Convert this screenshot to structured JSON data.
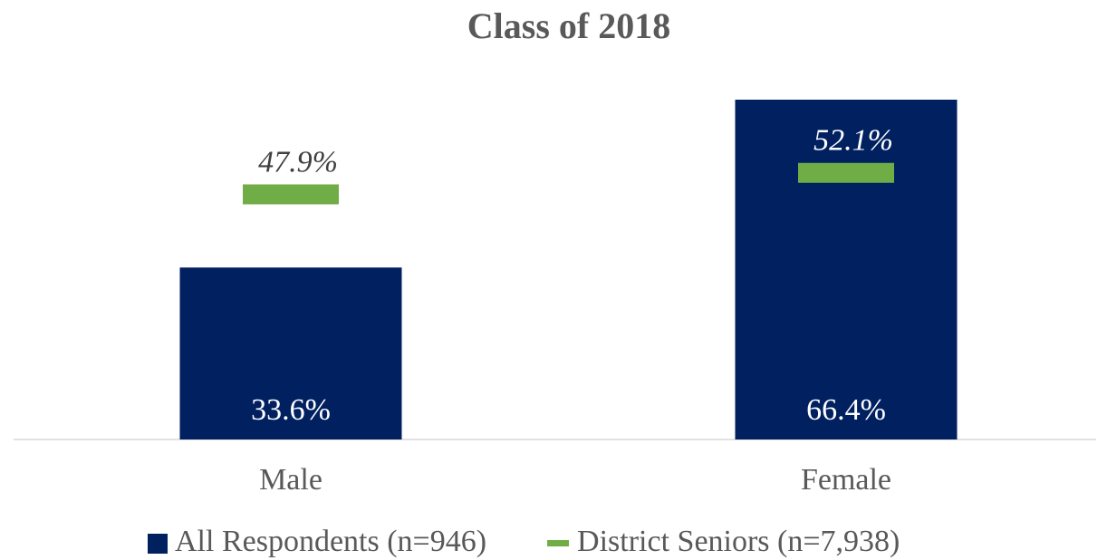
{
  "chart_data": {
    "type": "bar",
    "title": "Class of 2018",
    "categories": [
      "Male",
      "Female"
    ],
    "series": [
      {
        "name": "All Respondents (n=946)",
        "color": "#002060",
        "values": [
          33.6,
          66.4
        ],
        "value_labels": [
          "33.6%",
          "66.4%"
        ]
      },
      {
        "name": "District Seniors (n=7,938)",
        "color": "#70ad47",
        "marker": "dash",
        "values": [
          47.9,
          52.1
        ],
        "value_labels": [
          "47.9%",
          "52.1%"
        ]
      }
    ]
  }
}
